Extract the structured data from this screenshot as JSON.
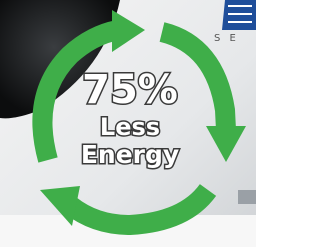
{
  "brand_text": "S E",
  "badge": {
    "big": "75%",
    "line1": "Less",
    "line2": "Energy"
  }
}
